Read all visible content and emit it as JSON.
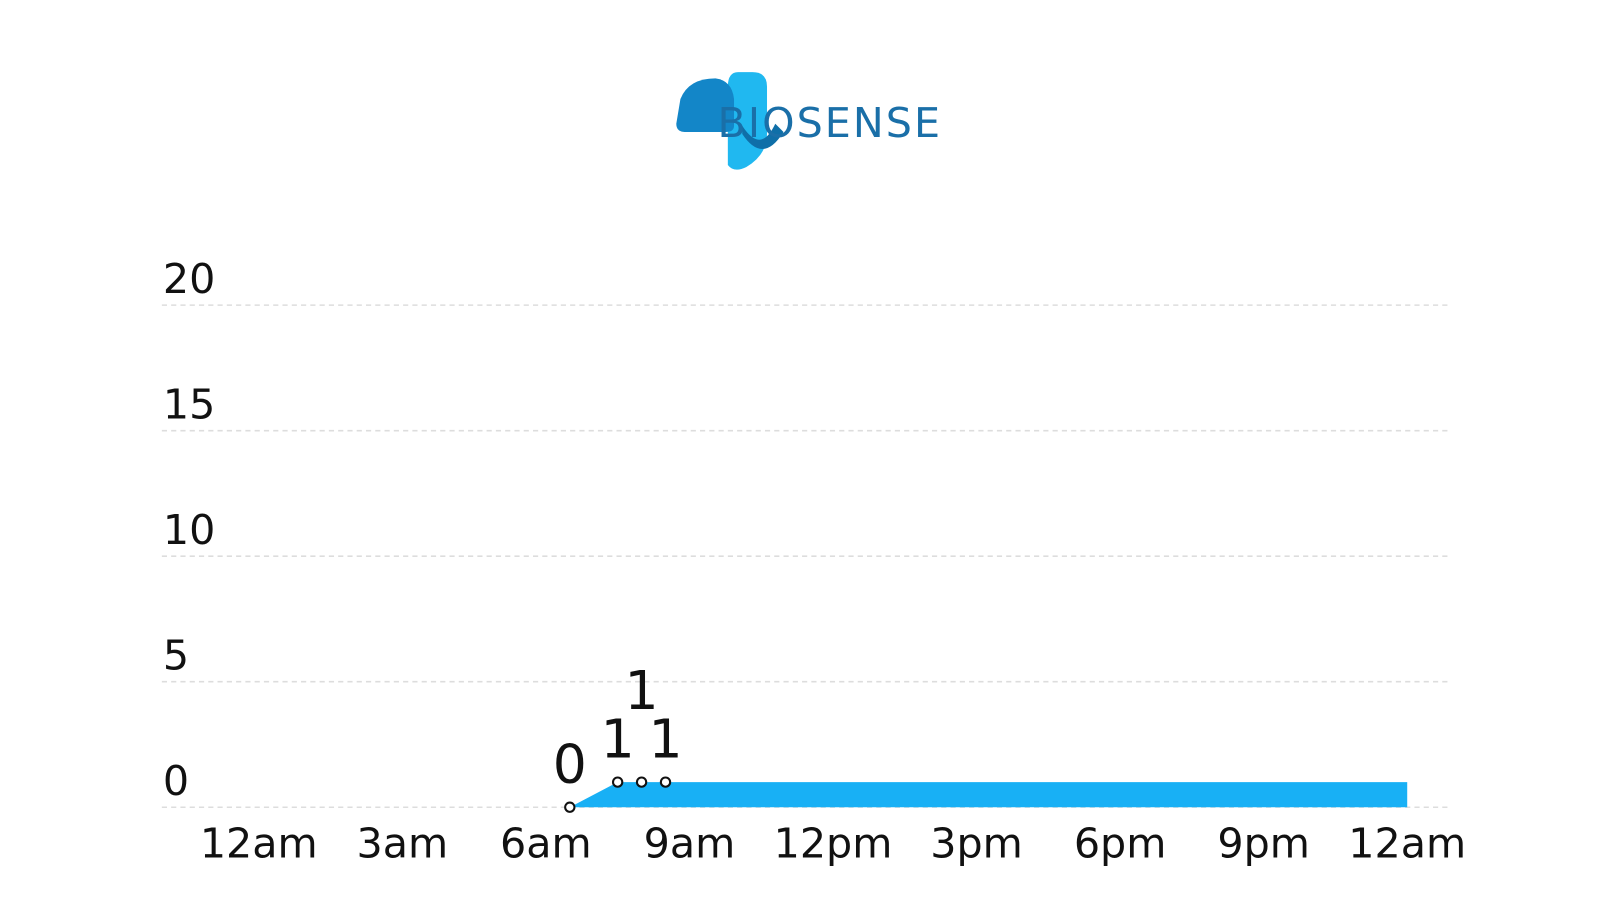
{
  "header": {
    "logo_text": "BIOSENSE"
  },
  "chart_data": {
    "type": "area",
    "x": [
      6.5,
      7.5,
      8,
      8.5,
      24
    ],
    "series": [
      {
        "color": "#18b0f5",
        "values": [
          0,
          1,
          1,
          1,
          1
        ]
      }
    ],
    "labeled_points": 4,
    "xlim": [
      0,
      24
    ],
    "xticks": [
      {
        "value": 0,
        "label": "12am"
      },
      {
        "value": 3,
        "label": "3am"
      },
      {
        "value": 6,
        "label": "6am"
      },
      {
        "value": 9,
        "label": "9am"
      },
      {
        "value": 12,
        "label": "12pm"
      },
      {
        "value": 15,
        "label": "3pm"
      },
      {
        "value": 18,
        "label": "6pm"
      },
      {
        "value": 21,
        "label": "9pm"
      },
      {
        "value": 24,
        "label": "12am"
      }
    ],
    "ylim": [
      0,
      20
    ],
    "yticks": [
      0,
      5,
      10,
      15,
      20
    ],
    "grid": true
  }
}
